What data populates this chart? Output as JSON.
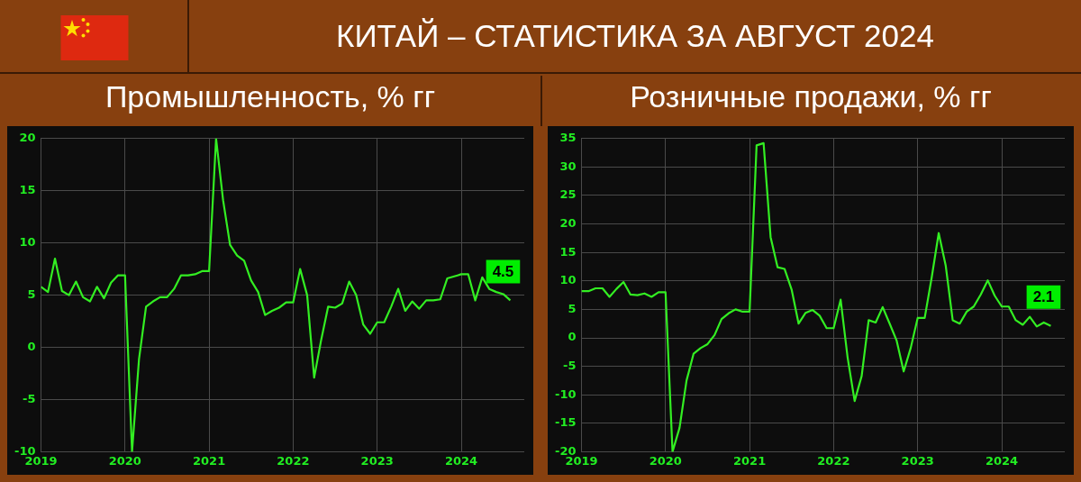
{
  "chart_data": [
    {
      "type": "line",
      "title": "Промышленность, % гг",
      "annotations": [
        "КИТАЙ – СТАТИСТИКА ЗА АВГУСТ 2024"
      ],
      "value_labels": [
        null,
        null,
        null,
        null,
        null,
        null,
        null,
        null,
        null,
        null,
        null,
        null,
        null,
        null,
        null,
        null,
        null,
        null,
        null,
        null,
        null,
        null,
        null,
        null,
        null,
        null,
        null,
        null,
        null,
        null,
        null,
        null,
        null,
        null,
        null,
        null,
        null,
        null,
        null,
        null,
        null,
        null,
        null,
        null,
        null,
        null,
        null,
        null,
        null,
        null,
        null,
        null,
        null,
        null,
        null,
        null,
        null,
        null,
        null,
        null,
        null,
        null,
        null,
        null,
        null,
        null,
        null,
        "4.5"
      ],
      "x": [
        "2019-01",
        "2019-02",
        "2019-03",
        "2019-04",
        "2019-05",
        "2019-06",
        "2019-07",
        "2019-08",
        "2019-09",
        "2019-10",
        "2019-11",
        "2019-12",
        "2020-01",
        "2020-02",
        "2020-03",
        "2020-04",
        "2020-05",
        "2020-06",
        "2020-07",
        "2020-08",
        "2020-09",
        "2020-10",
        "2020-11",
        "2020-12",
        "2021-01",
        "2021-02",
        "2021-03",
        "2021-04",
        "2021-05",
        "2021-06",
        "2021-07",
        "2021-08",
        "2021-09",
        "2021-10",
        "2021-11",
        "2021-12",
        "2022-01",
        "2022-02",
        "2022-03",
        "2022-04",
        "2022-05",
        "2022-06",
        "2022-07",
        "2022-08",
        "2022-09",
        "2022-10",
        "2022-11",
        "2022-12",
        "2023-01",
        "2023-02",
        "2023-03",
        "2023-04",
        "2023-05",
        "2023-06",
        "2023-07",
        "2023-08",
        "2023-09",
        "2023-10",
        "2023-11",
        "2023-12",
        "2024-01",
        "2024-02",
        "2024-03",
        "2024-04",
        "2024-05",
        "2024-06",
        "2024-07",
        "2024-08"
      ],
      "values": [
        5.8,
        5.3,
        8.5,
        5.4,
        5.0,
        6.3,
        4.8,
        4.4,
        5.8,
        4.7,
        6.2,
        6.9,
        6.9,
        -10,
        -1.1,
        3.9,
        4.4,
        4.8,
        4.8,
        5.6,
        6.9,
        6.9,
        7.0,
        7.3,
        7.3,
        20,
        14.1,
        9.8,
        8.8,
        8.3,
        6.4,
        5.3,
        3.1,
        3.5,
        3.8,
        4.3,
        4.3,
        7.5,
        5.0,
        -2.9,
        0.7,
        3.9,
        3.8,
        4.2,
        6.3,
        5.0,
        2.2,
        1.3,
        2.4,
        2.4,
        3.9,
        5.6,
        3.5,
        4.4,
        3.7,
        4.5,
        4.5,
        4.6,
        6.6,
        6.8,
        7.0,
        7.0,
        4.5,
        6.7,
        5.6,
        5.3,
        5.1,
        4.5
      ],
      "color": "#33ee22",
      "xlim": [
        "2019-01",
        "2024-10"
      ],
      "xticks": [
        {
          "value": "2019-01",
          "label": "2019"
        },
        {
          "value": "2020-01",
          "label": "2020"
        },
        {
          "value": "2021-01",
          "label": "2021"
        },
        {
          "value": "2022-01",
          "label": "2022"
        },
        {
          "value": "2023-01",
          "label": "2023"
        },
        {
          "value": "2024-01",
          "label": "2024"
        }
      ],
      "ylim": [
        -10,
        20
      ],
      "yticks": [
        -10,
        -5,
        0,
        5,
        10,
        15,
        20
      ],
      "grid": true
    },
    {
      "type": "line",
      "title": "Розничные продажи, % гг",
      "value_labels": [
        null,
        null,
        null,
        null,
        null,
        null,
        null,
        null,
        null,
        null,
        null,
        null,
        null,
        null,
        null,
        null,
        null,
        null,
        null,
        null,
        null,
        null,
        null,
        null,
        null,
        null,
        null,
        null,
        null,
        null,
        null,
        null,
        null,
        null,
        null,
        null,
        null,
        null,
        null,
        null,
        null,
        null,
        null,
        null,
        null,
        null,
        null,
        null,
        null,
        null,
        null,
        null,
        null,
        null,
        null,
        null,
        null,
        null,
        null,
        null,
        null,
        null,
        null,
        null,
        null,
        null,
        null,
        "2.1"
      ],
      "x": [
        "2019-01",
        "2019-02",
        "2019-03",
        "2019-04",
        "2019-05",
        "2019-06",
        "2019-07",
        "2019-08",
        "2019-09",
        "2019-10",
        "2019-11",
        "2019-12",
        "2020-01",
        "2020-02",
        "2020-03",
        "2020-04",
        "2020-05",
        "2020-06",
        "2020-07",
        "2020-08",
        "2020-09",
        "2020-10",
        "2020-11",
        "2020-12",
        "2021-01",
        "2021-02",
        "2021-03",
        "2021-04",
        "2021-05",
        "2021-06",
        "2021-07",
        "2021-08",
        "2021-09",
        "2021-10",
        "2021-11",
        "2021-12",
        "2022-01",
        "2022-02",
        "2022-03",
        "2022-04",
        "2022-05",
        "2022-06",
        "2022-07",
        "2022-08",
        "2022-09",
        "2022-10",
        "2022-11",
        "2022-12",
        "2023-01",
        "2023-02",
        "2023-03",
        "2023-04",
        "2023-05",
        "2023-06",
        "2023-07",
        "2023-08",
        "2023-09",
        "2023-10",
        "2023-11",
        "2023-12",
        "2024-01",
        "2024-02",
        "2024-03",
        "2024-04",
        "2024-05",
        "2024-06",
        "2024-07",
        "2024-08"
      ],
      "values": [
        8.2,
        8.2,
        8.7,
        8.7,
        7.2,
        8.6,
        9.8,
        7.6,
        7.5,
        7.8,
        7.2,
        8.0,
        8.0,
        -20,
        -15.8,
        -7.5,
        -2.8,
        -1.8,
        -1.1,
        0.5,
        3.3,
        4.3,
        5.0,
        4.6,
        4.6,
        33.8,
        34.2,
        17.7,
        12.4,
        12.1,
        8.5,
        2.5,
        4.4,
        4.9,
        3.9,
        1.7,
        1.7,
        6.7,
        -3.5,
        -11.1,
        -6.7,
        3.1,
        2.7,
        5.4,
        2.5,
        -0.5,
        -5.9,
        -1.8,
        3.5,
        3.5,
        10.6,
        18.4,
        12.7,
        3.1,
        2.5,
        4.6,
        5.5,
        7.6,
        10.1,
        7.4,
        5.5,
        5.5,
        3.1,
        2.3,
        3.7,
        2.0,
        2.7,
        2.1
      ],
      "color": "#33ee22",
      "xlim": [
        "2019-01",
        "2024-10"
      ],
      "xticks": [
        {
          "value": "2019-01",
          "label": "2019"
        },
        {
          "value": "2020-01",
          "label": "2020"
        },
        {
          "value": "2021-01",
          "label": "2021"
        },
        {
          "value": "2022-01",
          "label": "2022"
        },
        {
          "value": "2023-01",
          "label": "2023"
        },
        {
          "value": "2024-01",
          "label": "2024"
        }
      ],
      "ylim": [
        -20,
        35
      ],
      "yticks": [
        -20,
        -15,
        -10,
        -5,
        0,
        5,
        10,
        15,
        20,
        25,
        30,
        35
      ],
      "grid": true
    }
  ]
}
